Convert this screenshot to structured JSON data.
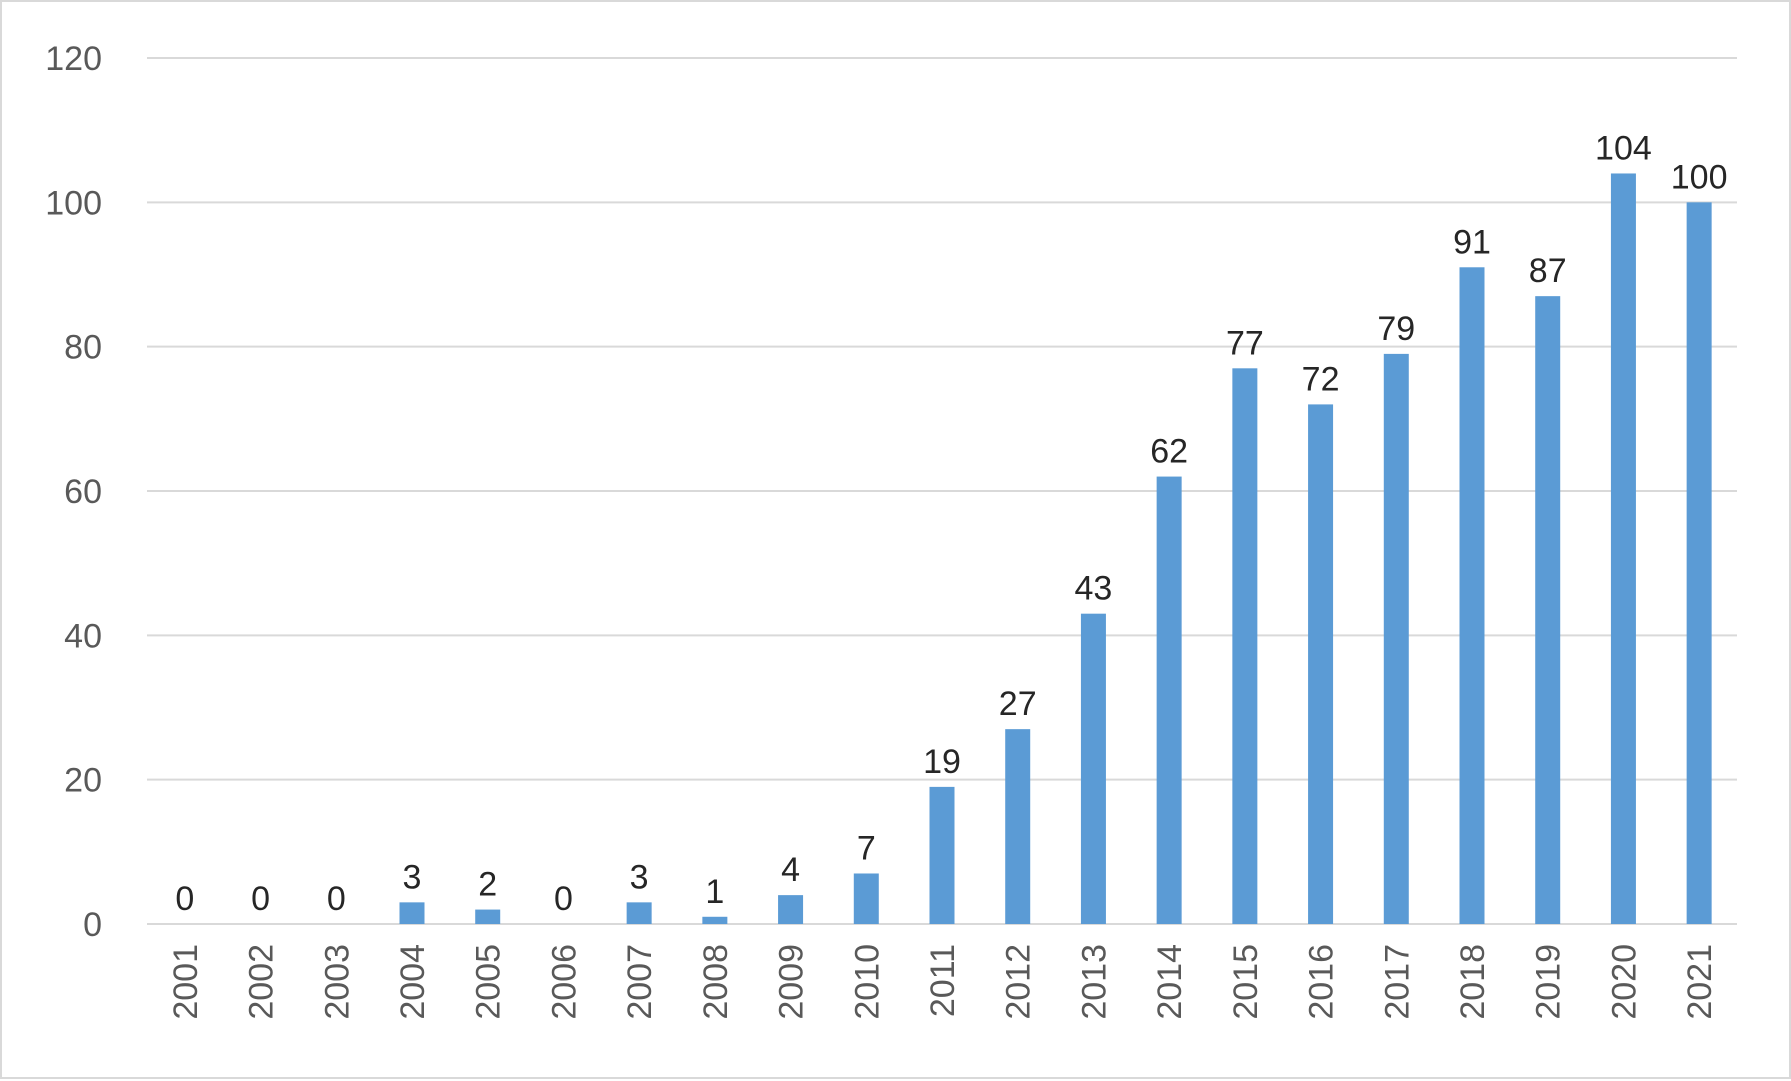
{
  "chart_data": {
    "type": "bar",
    "title": "",
    "xlabel": "",
    "ylabel": "",
    "categories": [
      "2001",
      "2002",
      "2003",
      "2004",
      "2005",
      "2006",
      "2007",
      "2008",
      "2009",
      "2010",
      "2011",
      "2012",
      "2013",
      "2014",
      "2015",
      "2016",
      "2017",
      "2018",
      "2019",
      "2020",
      "2021"
    ],
    "values": [
      0,
      0,
      0,
      3,
      2,
      0,
      3,
      1,
      4,
      7,
      19,
      27,
      43,
      62,
      77,
      72,
      79,
      91,
      87,
      104,
      100
    ],
    "ylim": [
      0,
      120
    ],
    "yticks": [
      0,
      20,
      40,
      60,
      80,
      100,
      120
    ],
    "grid": true,
    "legend": "none",
    "data_labels": true,
    "colors": {
      "bar": "#5b9bd5",
      "grid": "#d9d9d9",
      "tick_text": "#595959",
      "label_text": "#262626"
    }
  }
}
